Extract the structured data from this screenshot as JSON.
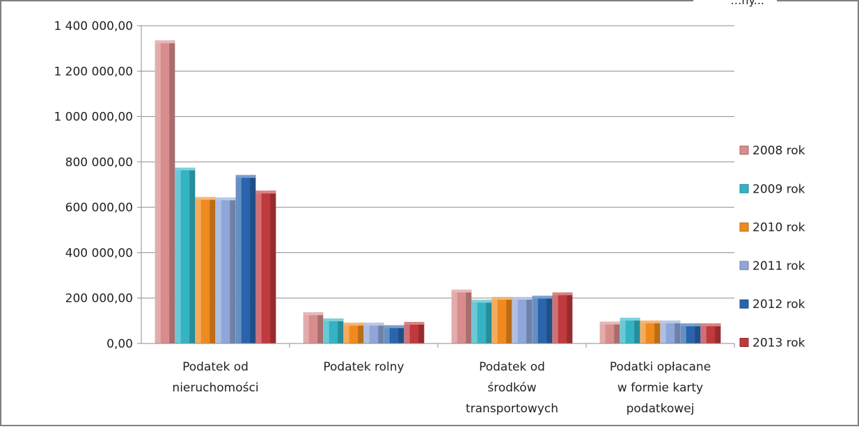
{
  "chart_data": {
    "type": "bar",
    "categories": [
      [
        "Podatek od",
        "nieruchomości"
      ],
      [
        "Podatek rolny"
      ],
      [
        "Podatek od",
        "środków",
        "transportowych"
      ],
      [
        "Podatki opłacane",
        "w formie karty",
        "podatkowej"
      ]
    ],
    "series": [
      {
        "name": "2008 rok",
        "color": "#d88c8c",
        "values": [
          1335000,
          137000,
          237000,
          96000
        ]
      },
      {
        "name": "2009 rok",
        "color": "#33b3c4",
        "values": [
          775000,
          110000,
          192000,
          113000
        ]
      },
      {
        "name": "2010 rok",
        "color": "#f08a1e",
        "values": [
          645000,
          91000,
          205000,
          101000
        ]
      },
      {
        "name": "2011 rok",
        "color": "#8fa6d8",
        "values": [
          643000,
          91000,
          205000,
          101000
        ]
      },
      {
        "name": "2012 rok",
        "color": "#2a64ad",
        "values": [
          742000,
          80000,
          210000,
          88000
        ]
      },
      {
        "name": "2013 rok",
        "color": "#c0393c",
        "values": [
          673000,
          95000,
          225000,
          88000
        ]
      }
    ],
    "yticks": [
      "0,00",
      "200 000,00",
      "400 000,00",
      "600 000,00",
      "800 000,00",
      "1 000 000,00",
      "1 200 000,00",
      "1 400 000,00"
    ],
    "ylim": [
      0,
      1400000
    ],
    "grid": true,
    "legend_position": "right",
    "corner_text": "…ny..."
  }
}
